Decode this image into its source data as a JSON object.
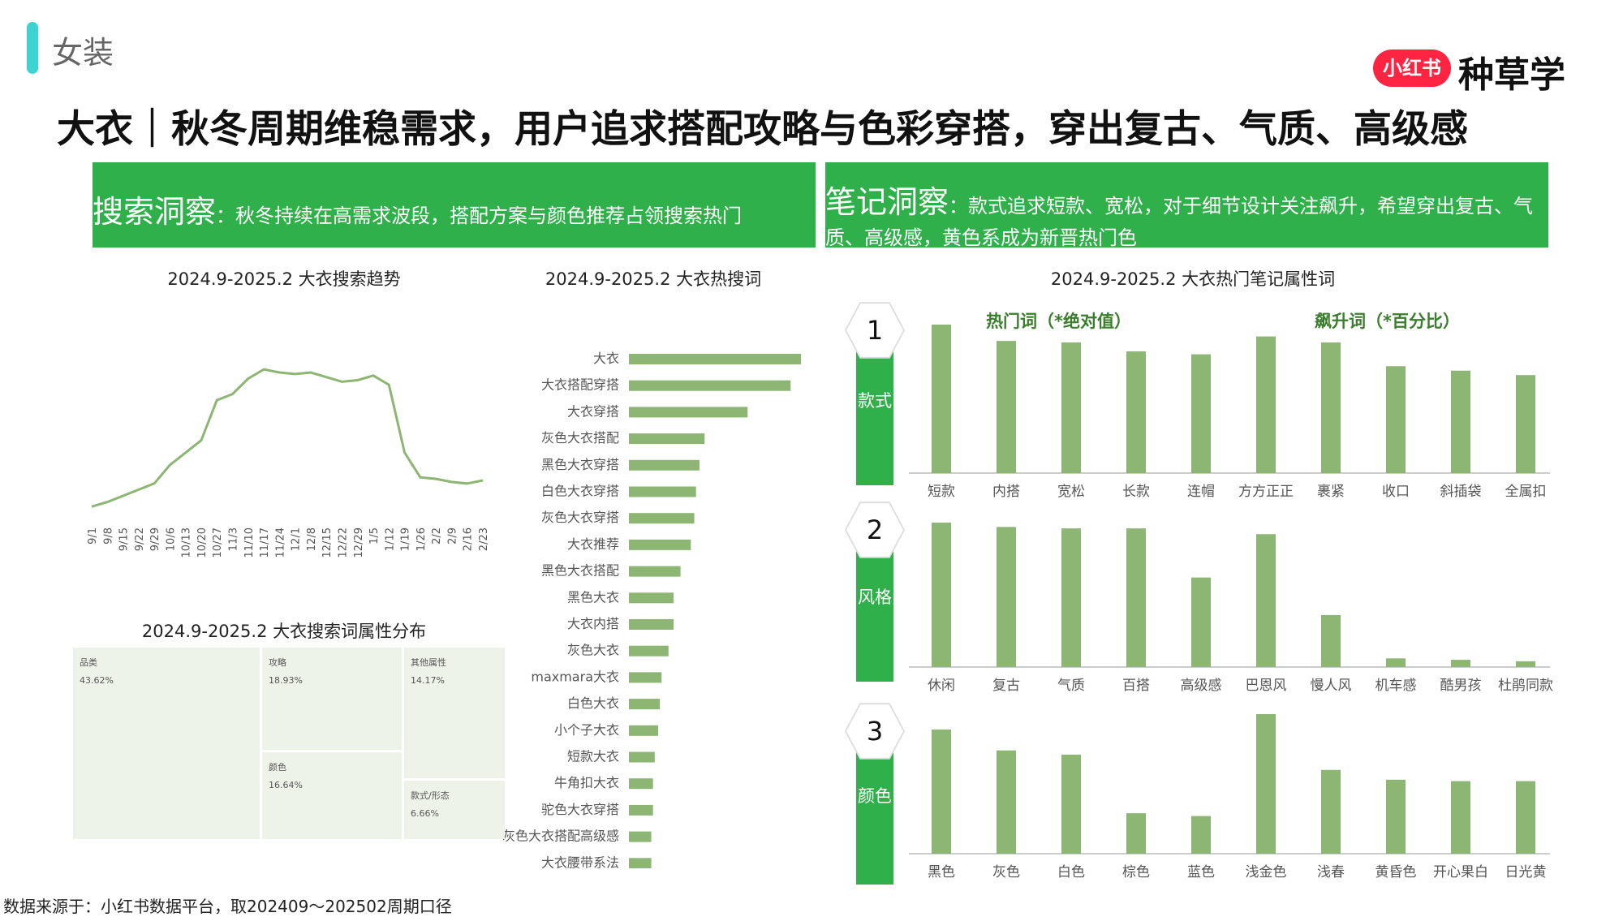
{
  "category": "女装",
  "brand": {
    "badge": "小红书",
    "name": "种草学"
  },
  "title": "大衣｜秋冬周期维稳需求，用户追求搭配攻略与色彩穿搭，穿出复古、气质、高级感",
  "insights": {
    "search": {
      "heading": "搜索洞察",
      "body": "：秋冬持续在高需求波段，搭配方案与颜色推荐占领搜索热门"
    },
    "notes": {
      "heading": "笔记洞察",
      "body": "：款式追求短款、宽松，对于细节设计关注飙升，希望穿出复古、气质、高级感，黄色系成为新晋热门色"
    }
  },
  "source": "数据来源于：小红书数据平台，取202409～202502周期口径",
  "colors": {
    "bar": "#8db573",
    "line": "#8db573",
    "accent": "#2fb04a",
    "category_bar": "#3dd3cf",
    "brand_red": "#ff2442"
  },
  "chart_data": [
    {
      "id": "trend",
      "type": "line",
      "title": "2024.9-2025.2 大衣搜索趋势",
      "x": [
        "9/1",
        "9/8",
        "9/15",
        "9/22",
        "9/29",
        "10/6",
        "10/13",
        "10/20",
        "10/27",
        "11/3",
        "11/10",
        "11/17",
        "11/24",
        "12/1",
        "12/8",
        "12/15",
        "12/22",
        "12/29",
        "1/5",
        "1/12",
        "1/19",
        "1/26",
        "2/2",
        "2/9",
        "2/16",
        "2/23"
      ],
      "values": [
        3,
        6,
        10,
        14,
        18,
        30,
        38,
        46,
        72,
        76,
        86,
        92,
        90,
        89,
        90,
        87,
        84,
        85,
        88,
        82,
        38,
        22,
        21,
        19,
        18,
        20
      ],
      "ylim": [
        0,
        100
      ]
    },
    {
      "id": "hotwords",
      "type": "bar",
      "orientation": "horizontal",
      "title": "2024.9-2025.2 大衣热搜词",
      "categories": [
        "大衣",
        "大衣搭配穿搭",
        "大衣穿搭",
        "灰色大衣搭配",
        "黑色大衣穿搭",
        "白色大衣穿搭",
        "灰色大衣穿搭",
        "大衣推荐",
        "黑色大衣搭配",
        "黑色大衣",
        "大衣内搭",
        "灰色大衣",
        "maxmara大衣",
        "白色大衣",
        "小个子大衣",
        "短款大衣",
        "牛角扣大衣",
        "驼色大衣穿搭",
        "灰色大衣搭配高级感",
        "大衣腰带系法"
      ],
      "values": [
        100,
        94,
        69,
        44,
        41,
        39,
        38,
        36,
        30,
        26,
        26,
        23,
        19,
        18,
        17,
        15,
        14,
        14,
        13,
        13
      ],
      "xlim": [
        0,
        100
      ]
    },
    {
      "id": "treemap",
      "type": "heatmap",
      "title": "2024.9-2025.2 大衣搜索词属性分布",
      "items": [
        {
          "label": "品类",
          "value": "43.62%"
        },
        {
          "label": "攻略",
          "value": "18.93%"
        },
        {
          "label": "颜色",
          "value": "16.64%"
        },
        {
          "label": "其他属性",
          "value": "14.17%"
        },
        {
          "label": "款式/形态",
          "value": "6.66%"
        }
      ]
    },
    {
      "id": "notes-attr",
      "type": "bar",
      "title": "2024.9-2025.2 大衣热门笔记属性词",
      "legend": {
        "hot": "热门词（*绝对值）",
        "rising": "飙升词（*百分比）"
      },
      "panels": [
        {
          "num": "1",
          "label": "款式",
          "categories": [
            "短款",
            "内搭",
            "宽松",
            "长款",
            "连帽",
            "方方正正",
            "裹紧",
            "收口",
            "斜插袋",
            "全属扣"
          ],
          "values": [
            100,
            89,
            88,
            82,
            80,
            92,
            88,
            72,
            69,
            66
          ]
        },
        {
          "num": "2",
          "label": "风格",
          "categories": [
            "休闲",
            "复古",
            "气质",
            "百搭",
            "高级感",
            "巴恩风",
            "慢人风",
            "机车感",
            "酷男孩",
            "杜鹃同款"
          ],
          "values": [
            100,
            97,
            96,
            96,
            62,
            92,
            36,
            6,
            5,
            4
          ]
        },
        {
          "num": "3",
          "label": "颜色",
          "categories": [
            "黑色",
            "灰色",
            "白色",
            "棕色",
            "蓝色",
            "浅金色",
            "浅春",
            "黄昏色",
            "开心果白",
            "日光黄"
          ],
          "values": [
            89,
            74,
            71,
            29,
            27,
            100,
            60,
            53,
            52,
            52
          ]
        }
      ],
      "ylim": [
        0,
        100
      ]
    }
  ]
}
